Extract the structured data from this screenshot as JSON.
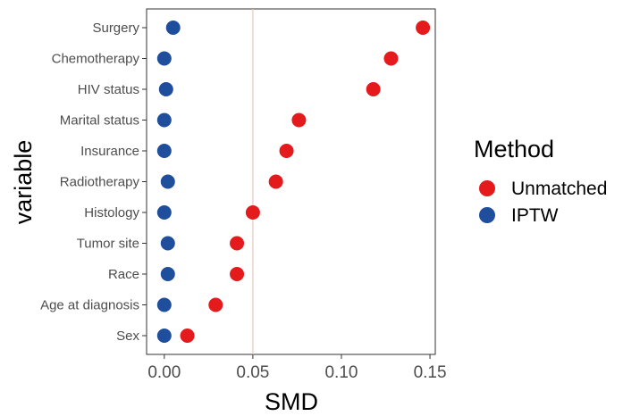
{
  "chart_data": {
    "type": "scatter",
    "title": "",
    "xlabel": "SMD",
    "ylabel": "variable",
    "xlim": [
      -0.01,
      0.153
    ],
    "xticks": [
      0.0,
      0.05,
      0.1,
      0.15
    ],
    "xtick_labels": [
      "0.00",
      "0.05",
      "0.10",
      "0.15"
    ],
    "reference_line": {
      "x": 0.05,
      "color": "#e6c8c0"
    },
    "categories": [
      "Surgery",
      "Chemotherapy",
      "HIV status",
      "Marital status",
      "Insurance",
      "Radiotherapy",
      "Histology",
      "Tumor site",
      "Race",
      "Age at diagnosis",
      "Sex"
    ],
    "series": [
      {
        "name": "Unmatched",
        "color": "#e41a1c",
        "values": [
          0.146,
          0.128,
          0.118,
          0.076,
          0.069,
          0.063,
          0.05,
          0.041,
          0.041,
          0.029,
          0.013
        ]
      },
      {
        "name": "IPTW",
        "color": "#1f4e9c",
        "values": [
          0.005,
          0.0,
          0.001,
          0.0,
          0.0,
          0.002,
          0.0,
          0.002,
          0.002,
          0.0,
          0.0
        ]
      }
    ],
    "legend": {
      "title": "Method",
      "position": "right"
    },
    "grid": false
  }
}
